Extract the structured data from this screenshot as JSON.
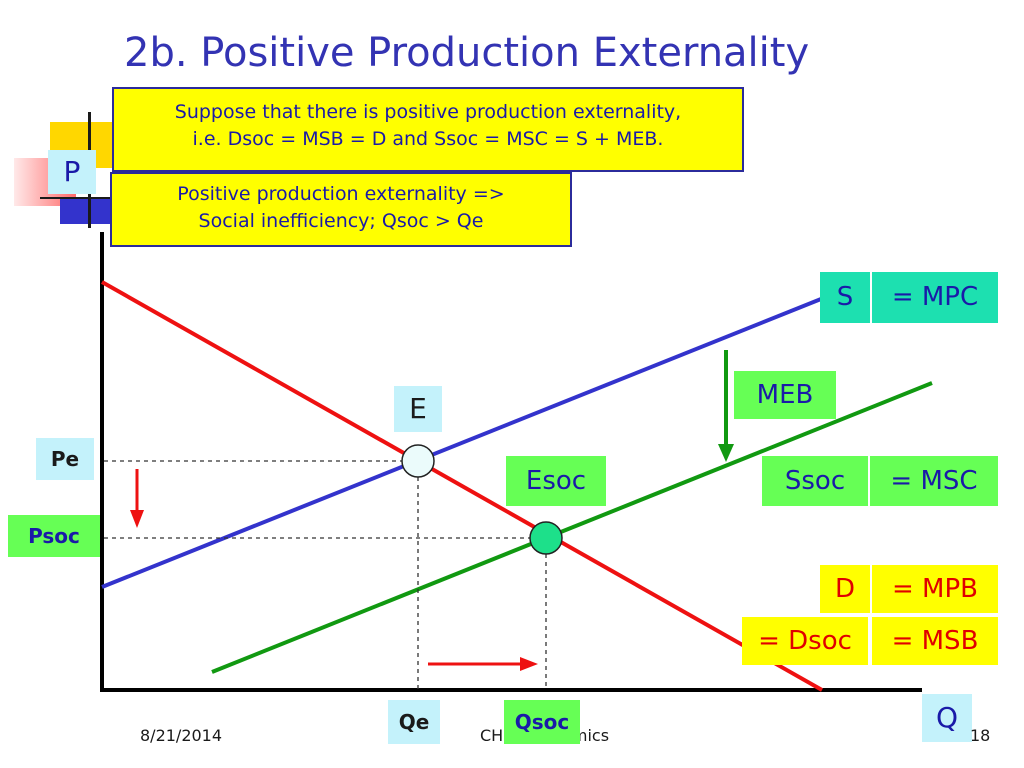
{
  "slide": {
    "title": "2b. Positive Production Externality",
    "note_top": [
      "Suppose that there is positive production externality,",
      "i.e. Dsoc = MSB = D and Ssoc = MSC = S + MEB."
    ],
    "note_bottom": [
      "Positive production externality =>",
      "Social inefficiency; Qsoc > Qe"
    ],
    "footer": {
      "date": "8/21/2014",
      "center": "CH... Economics",
      "page": "18"
    }
  },
  "diagram": {
    "axis_labels": {
      "y": "P",
      "x": "Q"
    },
    "curve_labels": {
      "s": "S",
      "mpc": "= MPC",
      "meb": "MEB",
      "ssoc": "Ssoc",
      "msc": "= MSC",
      "d": "D",
      "mpb": "= MPB",
      "dsoc": "= Dsoc",
      "msb": "= MSB"
    },
    "points": {
      "e": "E",
      "esoc": "Esoc"
    },
    "prices": {
      "pe": "Pe",
      "psoc": "Psoc"
    },
    "quantities": {
      "qe": "Qe",
      "qsoc": "Qsoc"
    },
    "colors": {
      "supply": "#3333cc",
      "ssoc": "#119911",
      "demand": "#ee1111",
      "axis": "#000000"
    }
  }
}
